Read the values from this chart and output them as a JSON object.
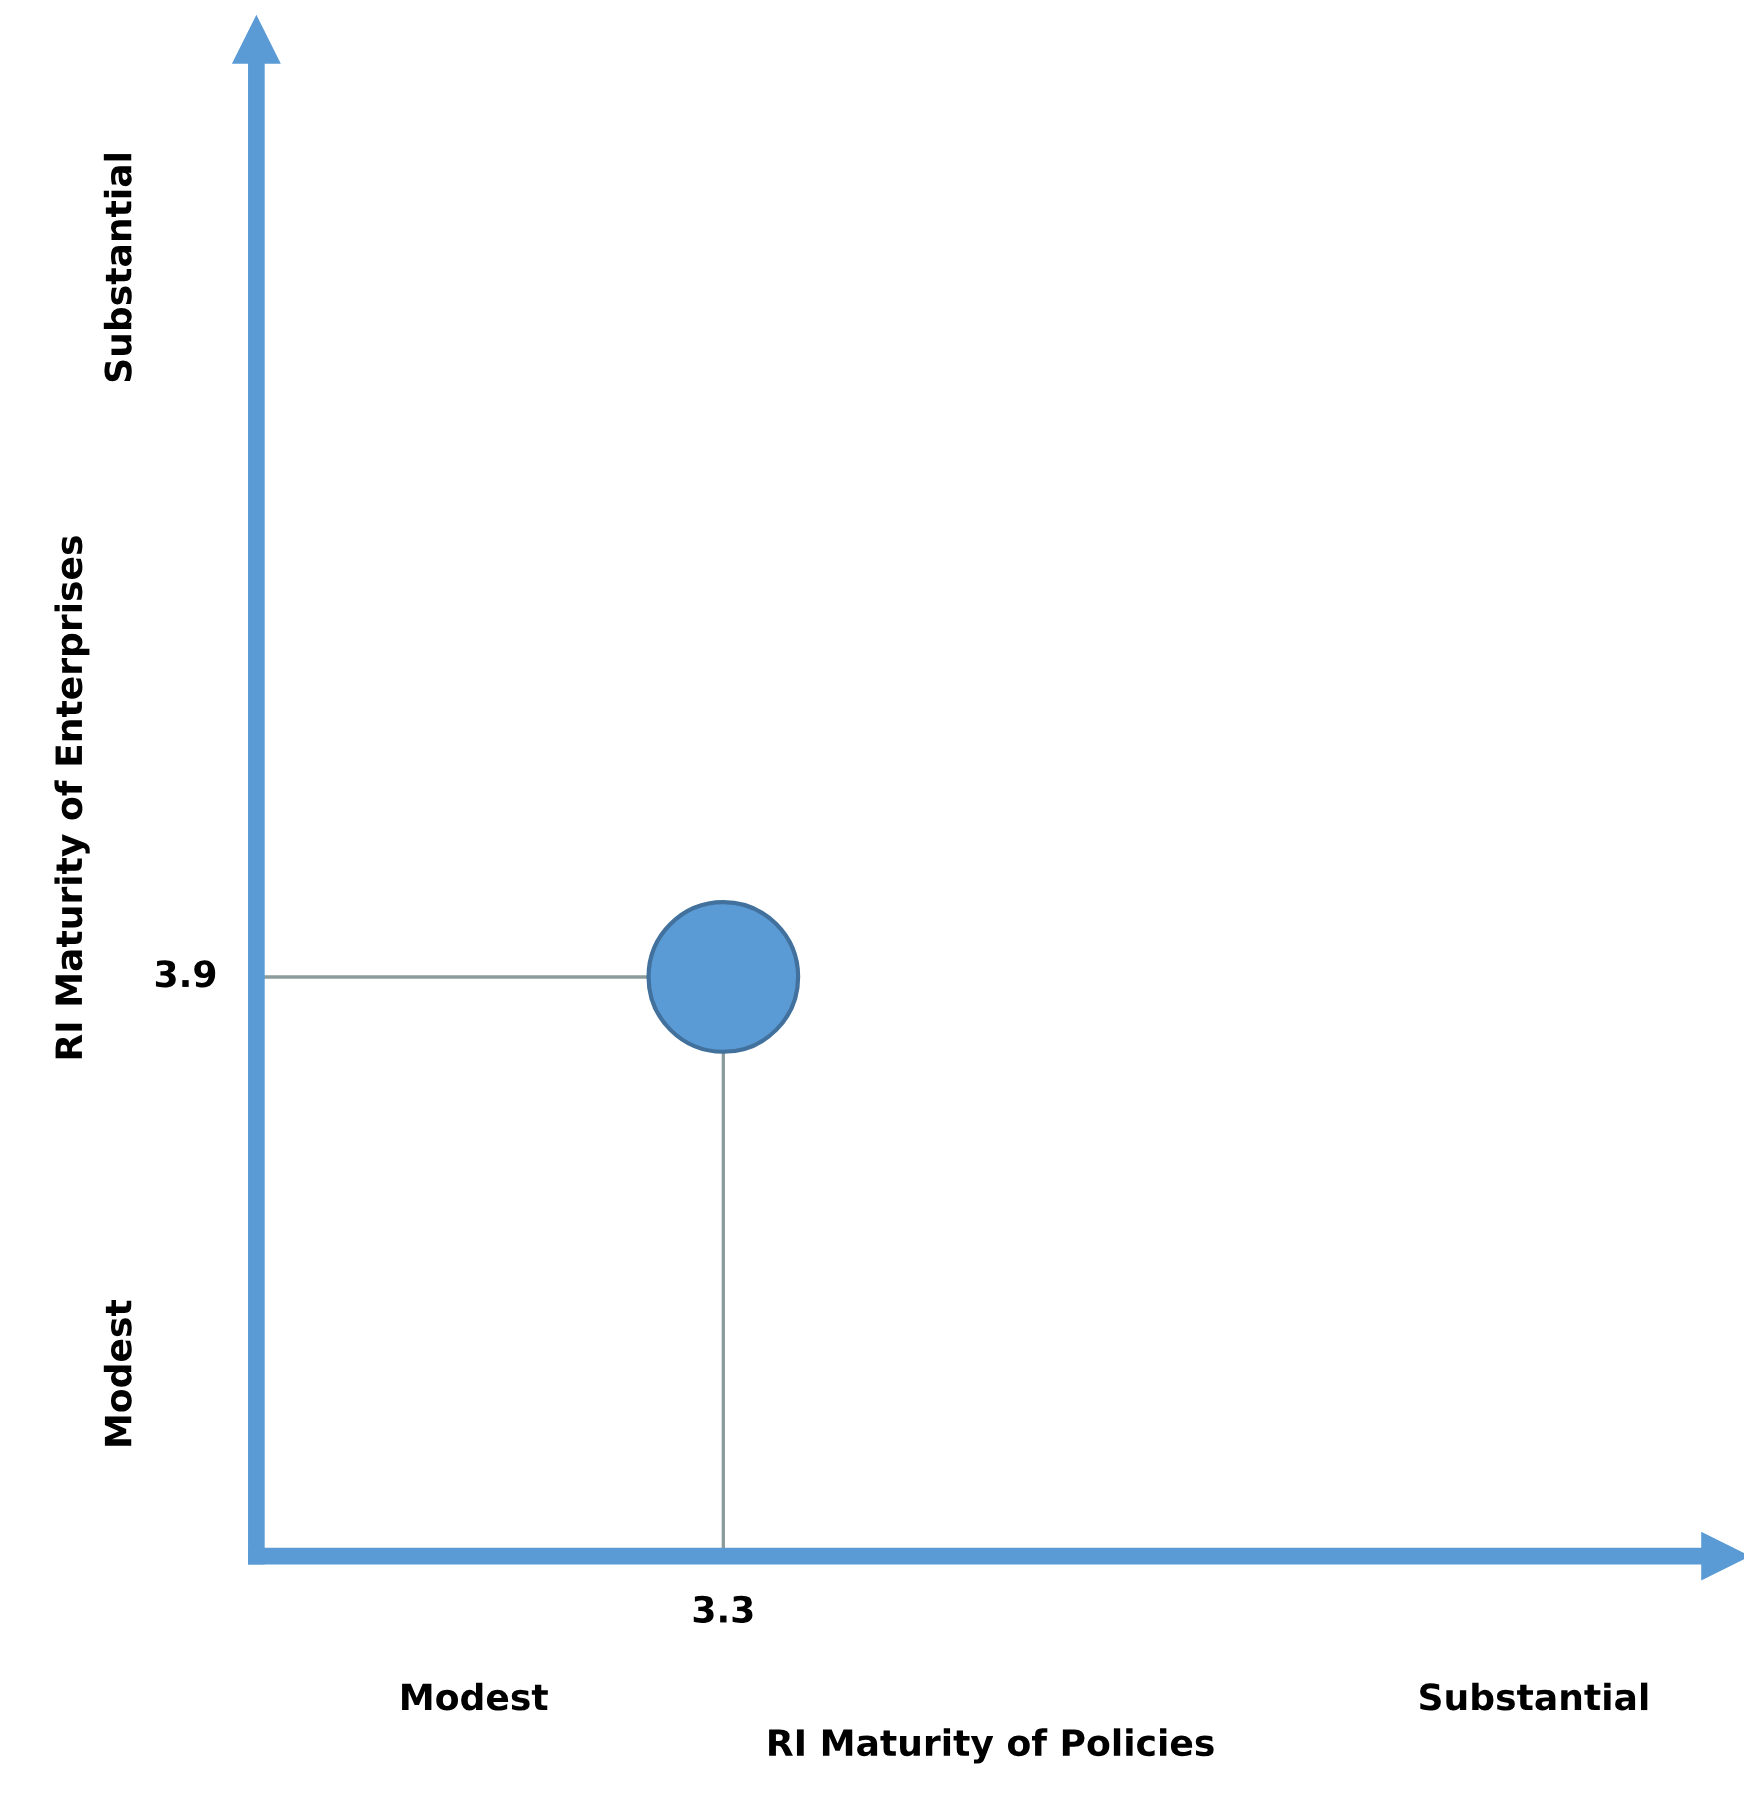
{
  "chart_data": {
    "type": "other",
    "xlabel": "RI Maturity of Policies",
    "ylabel": "RI Maturity of Enterprises",
    "categories": [
      "3.3"
    ],
    "series": [
      {
        "color": "#5b9bd5",
        "values": [
          3.9
        ]
      }
    ],
    "data_labels": true,
    "annotations": [
      "Modest",
      "Substantial",
      "Modest",
      "Substantial"
    ]
  }
}
